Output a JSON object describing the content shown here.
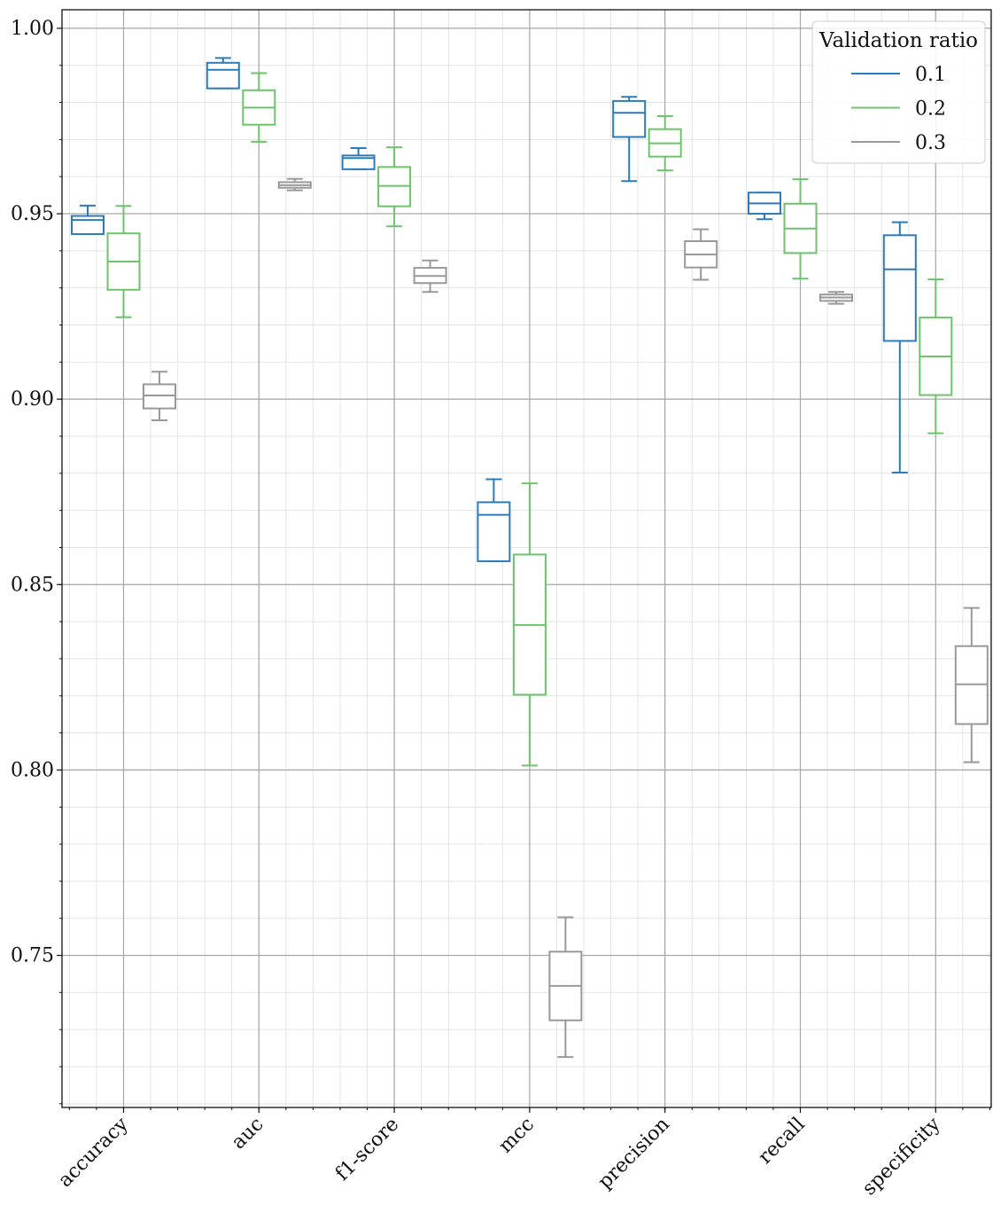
{
  "chart_data": {
    "type": "box",
    "categories": [
      "accuracy",
      "auc",
      "f1-score",
      "mcc",
      "precision",
      "recall",
      "specificity"
    ],
    "ylim": [
      0.709,
      1.005
    ],
    "yticks": [
      0.75,
      0.8,
      0.85,
      0.9,
      0.95,
      1.0
    ],
    "ytick_labels": [
      "0.75",
      "0.80",
      "0.85",
      "0.90",
      "0.95",
      "1.00"
    ],
    "grid": true,
    "legend": {
      "title": "Validation ratio",
      "placement": "top-right"
    },
    "series": [
      {
        "name": "0.1",
        "color": "#2b7bba",
        "boxes": [
          {
            "whislo": 0.9445,
            "q1": 0.9445,
            "med": 0.9483,
            "q3": 0.9494,
            "whishi": 0.9522
          },
          {
            "whislo": 0.9838,
            "q1": 0.9838,
            "med": 0.9888,
            "q3": 0.9907,
            "whishi": 0.992
          },
          {
            "whislo": 0.962,
            "q1": 0.962,
            "med": 0.965,
            "q3": 0.9657,
            "whishi": 0.9677
          },
          {
            "whislo": 0.8563,
            "q1": 0.8563,
            "med": 0.8688,
            "q3": 0.8722,
            "whishi": 0.8784
          },
          {
            "whislo": 0.9588,
            "q1": 0.9707,
            "med": 0.9772,
            "q3": 0.9804,
            "whishi": 0.9815
          },
          {
            "whislo": 0.9485,
            "q1": 0.95,
            "med": 0.9528,
            "q3": 0.9557,
            "whishi": 0.9557
          },
          {
            "whislo": 0.8802,
            "q1": 0.9157,
            "med": 0.935,
            "q3": 0.9442,
            "whishi": 0.9477
          }
        ]
      },
      {
        "name": "0.2",
        "color": "#6cc46a",
        "boxes": [
          {
            "whislo": 0.9221,
            "q1": 0.9295,
            "med": 0.9371,
            "q3": 0.9447,
            "whishi": 0.9521
          },
          {
            "whislo": 0.9694,
            "q1": 0.974,
            "med": 0.9786,
            "q3": 0.9833,
            "whishi": 0.9879
          },
          {
            "whislo": 0.9466,
            "q1": 0.952,
            "med": 0.9575,
            "q3": 0.9626,
            "whishi": 0.9679
          },
          {
            "whislo": 0.8012,
            "q1": 0.8203,
            "med": 0.8391,
            "q3": 0.8581,
            "whishi": 0.8773
          },
          {
            "whislo": 0.9617,
            "q1": 0.9654,
            "med": 0.969,
            "q3": 0.9728,
            "whishi": 0.9763
          },
          {
            "whislo": 0.9325,
            "q1": 0.9394,
            "med": 0.946,
            "q3": 0.9527,
            "whishi": 0.9593
          },
          {
            "whislo": 0.8908,
            "q1": 0.9011,
            "med": 0.9115,
            "q3": 0.922,
            "whishi": 0.9323
          }
        ]
      },
      {
        "name": "0.3",
        "color": "#999999",
        "boxes": [
          {
            "whislo": 0.8943,
            "q1": 0.8975,
            "med": 0.901,
            "q3": 0.904,
            "whishi": 0.9074
          },
          {
            "whislo": 0.9563,
            "q1": 0.957,
            "med": 0.9577,
            "q3": 0.9585,
            "whishi": 0.9594
          },
          {
            "whislo": 0.9289,
            "q1": 0.9313,
            "med": 0.9332,
            "q3": 0.9354,
            "whishi": 0.9374
          },
          {
            "whislo": 0.7226,
            "q1": 0.7325,
            "med": 0.7418,
            "q3": 0.751,
            "whishi": 0.7603
          },
          {
            "whislo": 0.9322,
            "q1": 0.9355,
            "med": 0.939,
            "q3": 0.9426,
            "whishi": 0.9458
          },
          {
            "whislo": 0.9257,
            "q1": 0.9265,
            "med": 0.9274,
            "q3": 0.9282,
            "whishi": 0.9289
          },
          {
            "whislo": 0.8021,
            "q1": 0.8124,
            "med": 0.8231,
            "q3": 0.8334,
            "whishi": 0.8437
          }
        ]
      }
    ]
  }
}
